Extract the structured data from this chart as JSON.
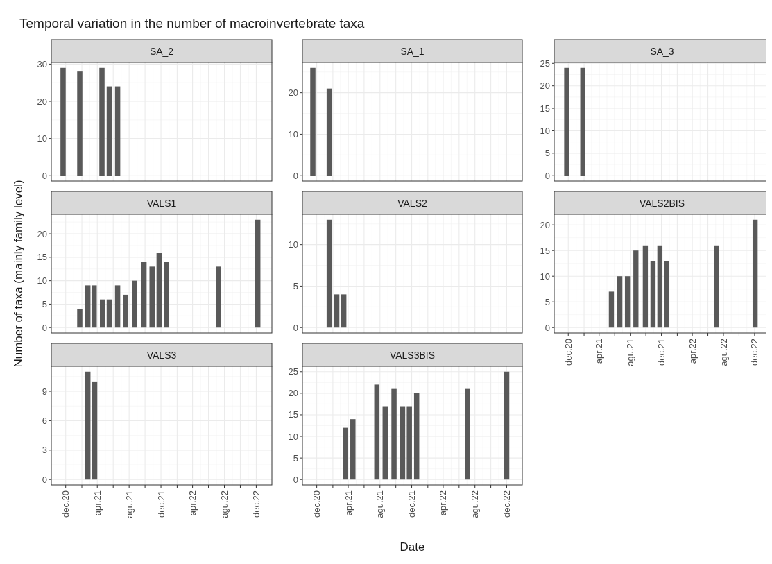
{
  "chart_data": [
    {
      "type": "bar",
      "title": "SA_2",
      "annotations": [
        "Temporal variation in the number of macroinvertebrate taxa"
      ],
      "x": [
        "2020-11-21",
        "2021-01-24",
        "2021-04-19",
        "2021-05-17",
        "2021-06-18"
      ],
      "values": [
        29,
        28,
        29,
        24,
        24
      ],
      "color": "#595959",
      "xlim": [
        "2020-10-07",
        "2023-01-30"
      ],
      "ylim": [
        -1.45,
        30.45
      ],
      "yticks": [
        0,
        10,
        20,
        30
      ],
      "xticks": [
        {
          "value": "2020-12-01",
          "label": null
        },
        {
          "value": "2021-02-01",
          "label": null
        },
        {
          "value": "2021-04-01",
          "label": null
        },
        {
          "value": "2021-06-01",
          "label": null
        },
        {
          "value": "2021-08-01",
          "label": null
        },
        {
          "value": "2021-10-01",
          "label": null
        },
        {
          "value": "2021-12-01",
          "label": null
        },
        {
          "value": "2022-02-01",
          "label": null
        },
        {
          "value": "2022-04-01",
          "label": null
        },
        {
          "value": "2022-06-01",
          "label": null
        },
        {
          "value": "2022-08-01",
          "label": null
        },
        {
          "value": "2022-10-01",
          "label": null
        },
        {
          "value": "2022-12-01",
          "label": null
        }
      ],
      "grid": true,
      "tick_labels": "y"
    },
    {
      "type": "bar",
      "title": "SA_1",
      "x": [
        "2020-11-16",
        "2021-01-18"
      ],
      "values": [
        26,
        21
      ],
      "color": "#595959",
      "xlim": [
        "2020-10-07",
        "2023-01-30"
      ],
      "ylim": [
        -1.3,
        27.3
      ],
      "yticks": [
        0,
        10,
        20
      ],
      "xticks": [
        {
          "value": "2020-12-01",
          "label": null
        },
        {
          "value": "2021-02-01",
          "label": null
        },
        {
          "value": "2021-04-01",
          "label": null
        },
        {
          "value": "2021-06-01",
          "label": null
        },
        {
          "value": "2021-08-01",
          "label": null
        },
        {
          "value": "2021-10-01",
          "label": null
        },
        {
          "value": "2021-12-01",
          "label": null
        },
        {
          "value": "2022-02-01",
          "label": null
        },
        {
          "value": "2022-04-01",
          "label": null
        },
        {
          "value": "2022-06-01",
          "label": null
        },
        {
          "value": "2022-08-01",
          "label": null
        },
        {
          "value": "2022-10-01",
          "label": null
        },
        {
          "value": "2022-12-01",
          "label": null
        }
      ],
      "grid": true,
      "tick_labels": "y"
    },
    {
      "type": "bar",
      "title": "SA_3",
      "x": [
        "2020-11-25",
        "2021-01-27"
      ],
      "values": [
        24,
        24
      ],
      "color": "#595959",
      "xlim": [
        "2020-10-07",
        "2023-01-30"
      ],
      "ylim": [
        -1.2,
        25.2
      ],
      "yticks": [
        0,
        5,
        10,
        15,
        20,
        25
      ],
      "xticks": [
        {
          "value": "2020-12-01",
          "label": null
        },
        {
          "value": "2021-02-01",
          "label": null
        },
        {
          "value": "2021-04-01",
          "label": null
        },
        {
          "value": "2021-06-01",
          "label": null
        },
        {
          "value": "2021-08-01",
          "label": null
        },
        {
          "value": "2021-10-01",
          "label": null
        },
        {
          "value": "2021-12-01",
          "label": null
        },
        {
          "value": "2022-02-01",
          "label": null
        },
        {
          "value": "2022-04-01",
          "label": null
        },
        {
          "value": "2022-06-01",
          "label": null
        },
        {
          "value": "2022-08-01",
          "label": null
        },
        {
          "value": "2022-10-01",
          "label": null
        },
        {
          "value": "2022-12-01",
          "label": null
        }
      ],
      "grid": true,
      "tick_labels": "y"
    },
    {
      "type": "bar",
      "title": "VALS1",
      "ylabel": "Number of taxa (mainly family level)",
      "x": [
        "2021-01-24",
        "2021-02-24",
        "2021-03-20",
        "2021-04-21",
        "2021-05-17",
        "2021-06-18",
        "2021-07-19",
        "2021-08-22",
        "2021-09-27",
        "2021-10-28",
        "2021-11-24",
        "2021-12-22",
        "2022-07-09",
        "2022-12-07"
      ],
      "values": [
        4,
        9,
        9,
        6,
        6,
        9,
        7,
        10,
        14,
        13,
        16,
        14,
        13,
        23
      ],
      "color": "#595959",
      "xlim": [
        "2020-10-07",
        "2023-01-30"
      ],
      "ylim": [
        -1.15,
        24.15
      ],
      "yticks": [
        0,
        5,
        10,
        15,
        20
      ],
      "xticks": [
        {
          "value": "2020-12-01",
          "label": null
        },
        {
          "value": "2021-02-01",
          "label": null
        },
        {
          "value": "2021-04-01",
          "label": null
        },
        {
          "value": "2021-06-01",
          "label": null
        },
        {
          "value": "2021-08-01",
          "label": null
        },
        {
          "value": "2021-10-01",
          "label": null
        },
        {
          "value": "2021-12-01",
          "label": null
        },
        {
          "value": "2022-02-01",
          "label": null
        },
        {
          "value": "2022-04-01",
          "label": null
        },
        {
          "value": "2022-06-01",
          "label": null
        },
        {
          "value": "2022-08-01",
          "label": null
        },
        {
          "value": "2022-10-01",
          "label": null
        },
        {
          "value": "2022-12-01",
          "label": null
        }
      ],
      "grid": true,
      "tick_labels": "y"
    },
    {
      "type": "bar",
      "title": "VALS2",
      "x": [
        "2021-01-18",
        "2021-02-16",
        "2021-03-15"
      ],
      "values": [
        13,
        4,
        4
      ],
      "color": "#595959",
      "xlim": [
        "2020-10-07",
        "2023-01-30"
      ],
      "ylim": [
        -0.65,
        13.65
      ],
      "yticks": [
        0,
        5,
        10
      ],
      "xticks": [
        {
          "value": "2020-12-01",
          "label": null
        },
        {
          "value": "2021-02-01",
          "label": null
        },
        {
          "value": "2021-04-01",
          "label": null
        },
        {
          "value": "2021-06-01",
          "label": null
        },
        {
          "value": "2021-08-01",
          "label": null
        },
        {
          "value": "2021-10-01",
          "label": null
        },
        {
          "value": "2021-12-01",
          "label": null
        },
        {
          "value": "2022-02-01",
          "label": null
        },
        {
          "value": "2022-04-01",
          "label": null
        },
        {
          "value": "2022-06-01",
          "label": null
        },
        {
          "value": "2022-08-01",
          "label": null
        },
        {
          "value": "2022-10-01",
          "label": null
        },
        {
          "value": "2022-12-01",
          "label": null
        }
      ],
      "grid": true,
      "tick_labels": "y"
    },
    {
      "type": "bar",
      "title": "VALS2BIS",
      "x": [
        "2021-05-19",
        "2021-06-21",
        "2021-07-21",
        "2021-08-23",
        "2021-09-29",
        "2021-10-29",
        "2021-11-25",
        "2021-12-21",
        "2022-07-05",
        "2022-12-03"
      ],
      "values": [
        7,
        10,
        10,
        15,
        16,
        13,
        16,
        13,
        16,
        21
      ],
      "color": "#595959",
      "xlim": [
        "2020-10-07",
        "2023-01-30"
      ],
      "ylim": [
        -1.05,
        22.05
      ],
      "yticks": [
        0,
        5,
        10,
        15,
        20
      ],
      "xticks": [
        {
          "value": "2020-12-01",
          "label": "dec.20"
        },
        {
          "value": "2021-02-01",
          "label": null
        },
        {
          "value": "2021-04-01",
          "label": "apr.21"
        },
        {
          "value": "2021-06-01",
          "label": null
        },
        {
          "value": "2021-08-01",
          "label": "agu.21"
        },
        {
          "value": "2021-10-01",
          "label": null
        },
        {
          "value": "2021-12-01",
          "label": "dec.21"
        },
        {
          "value": "2022-02-01",
          "label": null
        },
        {
          "value": "2022-04-01",
          "label": "apr.22"
        },
        {
          "value": "2022-06-01",
          "label": null
        },
        {
          "value": "2022-08-01",
          "label": "agu.22"
        },
        {
          "value": "2022-10-01",
          "label": null
        },
        {
          "value": "2022-12-01",
          "label": "dec.22"
        }
      ],
      "grid": true
    },
    {
      "type": "bar",
      "title": "VALS3",
      "x": [
        "2021-02-24",
        "2021-03-22"
      ],
      "values": [
        11,
        10
      ],
      "color": "#595959",
      "xlim": [
        "2020-10-07",
        "2023-01-30"
      ],
      "ylim": [
        -0.55,
        11.55
      ],
      "yticks": [
        0,
        3,
        6,
        9
      ],
      "xticks": [
        {
          "value": "2020-12-01",
          "label": "dec.20"
        },
        {
          "value": "2021-02-01",
          "label": null
        },
        {
          "value": "2021-04-01",
          "label": "apr.21"
        },
        {
          "value": "2021-06-01",
          "label": null
        },
        {
          "value": "2021-08-01",
          "label": "agu.21"
        },
        {
          "value": "2021-10-01",
          "label": null
        },
        {
          "value": "2021-12-01",
          "label": "dec.21"
        },
        {
          "value": "2022-02-01",
          "label": null
        },
        {
          "value": "2022-04-01",
          "label": "apr.22"
        },
        {
          "value": "2022-06-01",
          "label": null
        },
        {
          "value": "2022-08-01",
          "label": "agu.22"
        },
        {
          "value": "2022-10-01",
          "label": null
        },
        {
          "value": "2022-12-01",
          "label": "dec.22"
        }
      ],
      "grid": true
    },
    {
      "type": "bar",
      "title": "VALS3BIS",
      "xlabel": "Date",
      "x": [
        "2021-03-21",
        "2021-04-19",
        "2021-07-20",
        "2021-08-21",
        "2021-09-24",
        "2021-10-27",
        "2021-11-22",
        "2021-12-20",
        "2022-07-03",
        "2022-12-01"
      ],
      "values": [
        12,
        14,
        22,
        17,
        21,
        17,
        17,
        20,
        21,
        25
      ],
      "color": "#595959",
      "xlim": [
        "2020-10-07",
        "2023-01-30"
      ],
      "ylim": [
        -1.25,
        26.25
      ],
      "yticks": [
        0,
        5,
        10,
        15,
        20,
        25
      ],
      "xticks": [
        {
          "value": "2020-12-01",
          "label": "dec.20"
        },
        {
          "value": "2021-02-01",
          "label": null
        },
        {
          "value": "2021-04-01",
          "label": "apr.21"
        },
        {
          "value": "2021-06-01",
          "label": null
        },
        {
          "value": "2021-08-01",
          "label": "agu.21"
        },
        {
          "value": "2021-10-01",
          "label": null
        },
        {
          "value": "2021-12-01",
          "label": "dec.21"
        },
        {
          "value": "2022-02-01",
          "label": null
        },
        {
          "value": "2022-04-01",
          "label": "apr.22"
        },
        {
          "value": "2022-06-01",
          "label": null
        },
        {
          "value": "2022-08-01",
          "label": "agu.22"
        },
        {
          "value": "2022-10-01",
          "label": null
        },
        {
          "value": "2022-12-01",
          "label": "dec.22"
        }
      ],
      "grid": true
    }
  ]
}
